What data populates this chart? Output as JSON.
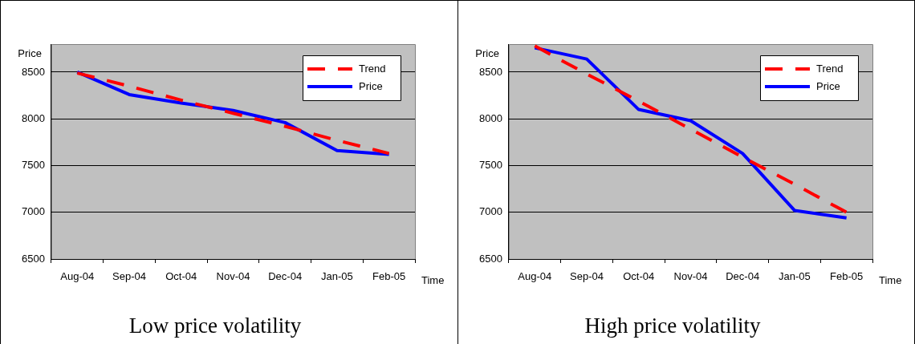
{
  "chart_data": [
    {
      "type": "line",
      "title": "Low price volatility",
      "xlabel": "Time",
      "ylabel": "Price",
      "categories": [
        "Aug-04",
        "Sep-04",
        "Oct-04",
        "Nov-04",
        "Dec-04",
        "Jan-05",
        "Feb-05"
      ],
      "series": [
        {
          "name": "Trend",
          "color": "#ff0000",
          "line_style": "dashed",
          "values": [
            8490,
            8350,
            8200,
            8060,
            7920,
            7770,
            7630
          ]
        },
        {
          "name": "Price",
          "color": "#0000ff",
          "line_style": "solid",
          "values": [
            8500,
            8260,
            8170,
            8090,
            7960,
            7660,
            7620
          ]
        }
      ],
      "ylim": [
        6500,
        8800
      ],
      "yticks": [
        6500,
        7000,
        7500,
        8000,
        8500
      ],
      "grid": "y",
      "legend": "top right",
      "marker": "none"
    },
    {
      "type": "line",
      "title": "High price volatility",
      "xlabel": "Time",
      "ylabel": "Price",
      "categories": [
        "Aug-04",
        "Sep-04",
        "Oct-04",
        "Nov-04",
        "Dec-04",
        "Jan-05",
        "Feb-05"
      ],
      "series": [
        {
          "name": "Trend",
          "color": "#ff0000",
          "line_style": "dashed",
          "values": [
            8780,
            8480,
            8190,
            7890,
            7590,
            7300,
            7000
          ]
        },
        {
          "name": "Price",
          "color": "#0000ff",
          "line_style": "solid",
          "values": [
            8760,
            8640,
            8100,
            7980,
            7630,
            7020,
            6940
          ]
        }
      ],
      "ylim": [
        6500,
        8800
      ],
      "yticks": [
        6500,
        7000,
        7500,
        8000,
        8500
      ],
      "grid": "y",
      "legend": "top right",
      "marker": "none"
    }
  ]
}
